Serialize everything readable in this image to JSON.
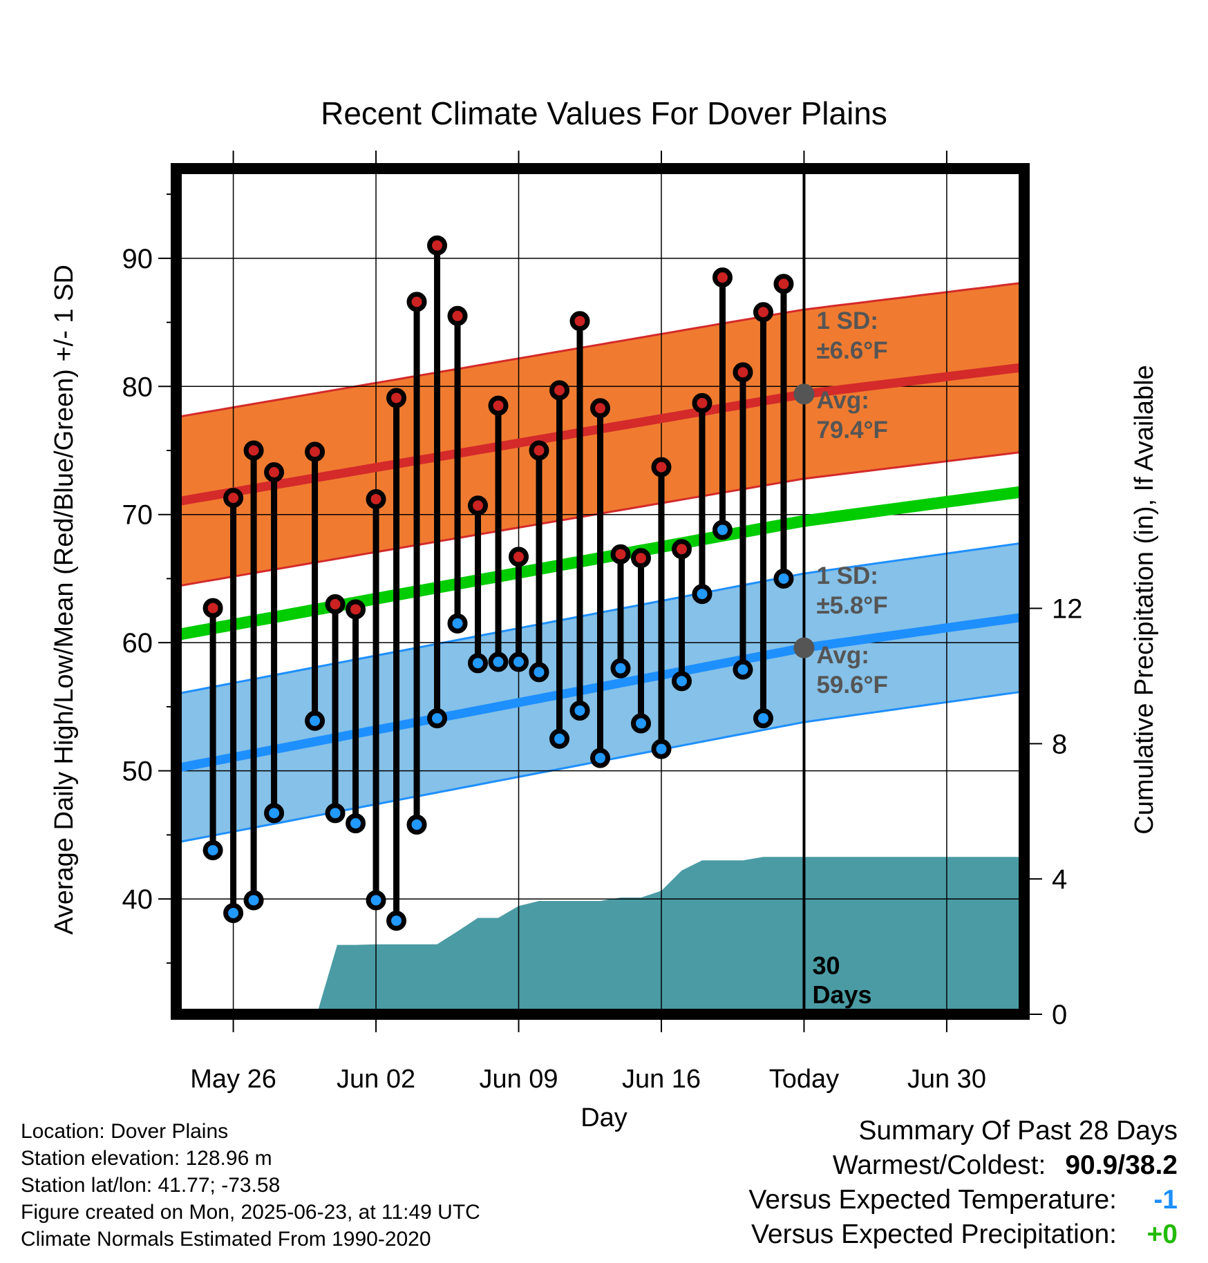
{
  "chart_data": {
    "type": "line",
    "title": "Recent Climate Values For Dover Plains",
    "xlabel": "Day",
    "ylabel": "Average Daily High/Low/Mean (Red/Blue/Green) +/- 1 SD",
    "y2label": "Cumulative Precipitation (in), If Available",
    "x_tick_labels": [
      "May 26",
      "Jun 02",
      "Jun 09",
      "Jun 16",
      "Today",
      "Jun 30"
    ],
    "x_tick_positions": [
      3,
      10,
      17,
      24,
      31,
      38
    ],
    "y_ticks": [
      40,
      50,
      60,
      70,
      80,
      90
    ],
    "ylim": [
      31,
      97
    ],
    "y2_ticks": [
      0,
      4,
      8,
      12
    ],
    "y2lim": [
      0,
      25
    ],
    "xlim": [
      0.2,
      41.8
    ],
    "today_x": 31,
    "today_label": "30 Days",
    "normal_high": {
      "name": "Avg High",
      "x": [
        0.2,
        31,
        41.8
      ],
      "values": [
        71.0,
        79.4,
        81.5
      ],
      "sd": 6.6
    },
    "normal_low": {
      "name": "Avg Low",
      "x": [
        0.2,
        31,
        41.8
      ],
      "values": [
        50.2,
        59.6,
        62.0
      ],
      "sd": 5.8
    },
    "normal_mean": {
      "name": "Avg Mean",
      "x": [
        0.2,
        31,
        41.8
      ],
      "values": [
        60.6,
        69.5,
        71.8
      ]
    },
    "high_annotation": {
      "sd_label": "1 SD:",
      "sd_value": "±6.6°F",
      "avg_label": "Avg:",
      "avg_value": "79.4°F"
    },
    "low_annotation": {
      "sd_label": "1 SD:",
      "sd_value": "±5.8°F",
      "avg_label": "Avg:",
      "avg_value": "59.6°F"
    },
    "observations": [
      {
        "day": 2,
        "high": 62.7,
        "low": 43.8
      },
      {
        "day": 3,
        "high": 71.3,
        "low": 38.9
      },
      {
        "day": 4,
        "high": 75.0,
        "low": 39.9
      },
      {
        "day": 5,
        "high": 73.3,
        "low": 46.7
      },
      {
        "day": 7,
        "high": 74.9,
        "low": 53.9
      },
      {
        "day": 8,
        "high": 63.0,
        "low": 46.7
      },
      {
        "day": 9,
        "high": 62.6,
        "low": 45.9
      },
      {
        "day": 10,
        "high": 71.2,
        "low": 39.9
      },
      {
        "day": 11,
        "high": 79.1,
        "low": 38.3
      },
      {
        "day": 12,
        "high": 86.6,
        "low": 45.8
      },
      {
        "day": 13,
        "high": 91.0,
        "low": 54.1
      },
      {
        "day": 14,
        "high": 85.5,
        "low": 61.5
      },
      {
        "day": 15,
        "high": 70.7,
        "low": 58.4
      },
      {
        "day": 16,
        "high": 78.5,
        "low": 58.5
      },
      {
        "day": 17,
        "high": 66.7,
        "low": 58.5
      },
      {
        "day": 18,
        "high": 75.0,
        "low": 57.7
      },
      {
        "day": 19,
        "high": 79.7,
        "low": 52.5
      },
      {
        "day": 20,
        "high": 85.1,
        "low": 54.7
      },
      {
        "day": 21,
        "high": 78.3,
        "low": 51.0
      },
      {
        "day": 22,
        "high": 66.9,
        "low": 58.0
      },
      {
        "day": 23,
        "high": 66.6,
        "low": 53.7
      },
      {
        "day": 24,
        "high": 73.7,
        "low": 51.7
      },
      {
        "day": 25,
        "high": 67.3,
        "low": 57.0
      },
      {
        "day": 26,
        "high": 78.7,
        "low": 63.8
      },
      {
        "day": 27,
        "high": 88.5,
        "low": 68.8
      },
      {
        "day": 28,
        "high": 81.1,
        "low": 57.9
      },
      {
        "day": 29,
        "high": 85.8,
        "low": 54.1
      },
      {
        "day": 30,
        "high": 88.0,
        "low": 65.0
      }
    ],
    "precipitation": {
      "x": [
        7.1,
        8.1,
        9,
        10,
        11,
        12,
        13,
        14,
        15,
        16,
        17,
        18,
        19,
        20,
        21,
        22,
        23,
        24,
        25,
        26,
        27,
        28,
        29,
        30,
        31,
        41.8
      ],
      "values": [
        0,
        2.05,
        2.05,
        2.07,
        2.07,
        2.07,
        2.07,
        2.45,
        2.85,
        2.85,
        3.2,
        3.35,
        3.35,
        3.35,
        3.35,
        3.45,
        3.45,
        3.65,
        4.25,
        4.55,
        4.55,
        4.55,
        4.65,
        4.65,
        4.65,
        4.65
      ]
    },
    "colors": {
      "high_band": "#f07b30",
      "high_line": "#d42a2a",
      "low_band": "#85c1e8",
      "low_line": "#1e8fff",
      "mean_line": "#00cc00",
      "precip": "#4a9ba4",
      "high_marker": "#cc2222",
      "low_marker": "#2299ff",
      "annotation_text": "#555555",
      "avg_dot": "#555555"
    }
  },
  "meta": {
    "location": "Location: Dover Plains",
    "elevation": "Station elevation: 128.96 m",
    "latlon": "Station lat/lon: 41.77; -73.58",
    "created": "Figure created on Mon, 2025-06-23, at 11:49 UTC",
    "normals": "Climate Normals Estimated From 1990-2020"
  },
  "summary": {
    "title": "Summary Of Past 28 Days",
    "warmest_label": "Warmest/Coldest:",
    "warmest_value": "90.9/38.2",
    "temp_label": "Versus Expected Temperature:",
    "temp_value": "-1",
    "temp_color": "#1e8fff",
    "precip_label": "Versus Expected Precipitation:",
    "precip_value": "+0",
    "precip_color": "#22bb00"
  }
}
